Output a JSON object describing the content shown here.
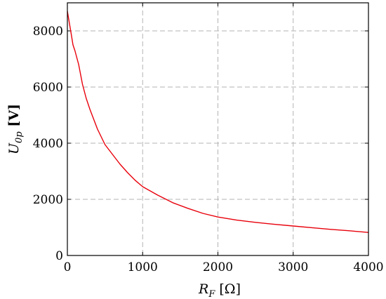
{
  "chart_data": {
    "type": "line",
    "title": "",
    "xlabel": {
      "main": "R",
      "sub": "F",
      "unit": " [Ω]"
    },
    "ylabel": {
      "main": "U",
      "sub": "0p",
      "unit": " [V]"
    },
    "xlim": [
      0,
      4000
    ],
    "ylim": [
      0,
      9000
    ],
    "xticks": [
      0,
      1000,
      2000,
      3000,
      4000
    ],
    "yticks": [
      0,
      2000,
      4000,
      6000,
      8000
    ],
    "xtick_labels": [
      "0",
      "1000",
      "2000",
      "3000",
      "4000"
    ],
    "ytick_labels": [
      "0",
      "2000",
      "4000",
      "6000",
      "8000"
    ],
    "grid": true,
    "series": [
      {
        "color": "#e8000b",
        "x": [
          0,
          25,
          50,
          75,
          100,
          150,
          200,
          250,
          300,
          400,
          500,
          600,
          700,
          800,
          900,
          1000,
          1200,
          1400,
          1600,
          1800,
          2000,
          2250,
          2500,
          2750,
          3000,
          3250,
          3500,
          3750,
          4000
        ],
        "y": [
          8700,
          8300,
          7900,
          7500,
          7300,
          6800,
          6100,
          5600,
          5200,
          4500,
          3950,
          3600,
          3250,
          2950,
          2680,
          2450,
          2150,
          1880,
          1680,
          1500,
          1370,
          1260,
          1180,
          1110,
          1050,
          990,
          930,
          880,
          820
        ]
      }
    ]
  }
}
